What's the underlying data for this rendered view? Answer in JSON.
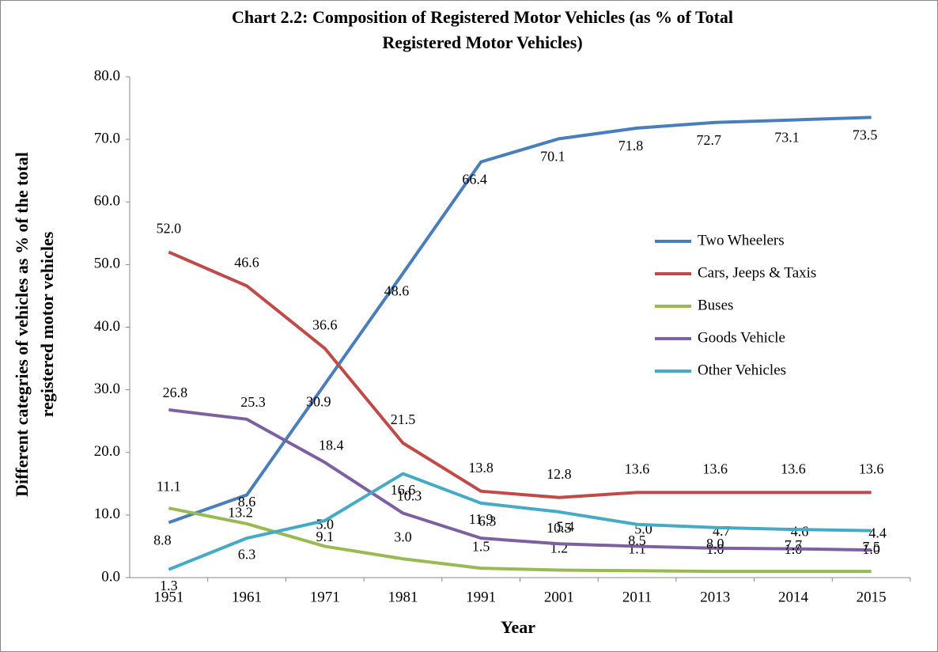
{
  "chart_data": {
    "type": "line",
    "title": [
      "Chart 2.2: Composition of Registered Motor Vehicles  (as % of Total",
      "Registered Motor Vehicles)"
    ],
    "x_label": "Year",
    "y_label": [
      "Different categries of vehicles as % of the total",
      "registered motor vehicles"
    ],
    "categories": [
      "1951",
      "1961",
      "1971",
      "1981",
      "1991",
      "2001",
      "2011",
      "2013",
      "2014",
      "2015"
    ],
    "ylim": [
      0,
      80
    ],
    "yticks": [
      {
        "value": 0,
        "label": "0.0"
      },
      {
        "value": 10,
        "label": "10.0"
      },
      {
        "value": 20,
        "label": "20.0"
      },
      {
        "value": 30,
        "label": "30.0"
      },
      {
        "value": 40,
        "label": "40.0"
      },
      {
        "value": 50,
        "label": "50.0"
      },
      {
        "value": 60,
        "label": "60.0"
      },
      {
        "value": 70,
        "label": "70.0"
      },
      {
        "value": 80,
        "label": "80.0"
      }
    ],
    "legend": "right",
    "series": [
      {
        "name": "Two Wheelers",
        "color": "#4a7ebb",
        "values": [
          8.8,
          13.2,
          30.9,
          48.6,
          66.4,
          70.1,
          71.8,
          72.7,
          73.1,
          73.5
        ],
        "value_labels": [
          "8.8",
          "13.2",
          "30.9",
          "48.6",
          "66.4",
          "70.1",
          "71.8",
          "72.7",
          "73.1",
          "73.5"
        ]
      },
      {
        "name": "Cars, Jeeps & Taxis",
        "color": "#be4b48",
        "values": [
          52.0,
          46.6,
          36.6,
          21.5,
          13.8,
          12.8,
          13.6,
          13.6,
          13.6,
          13.6
        ],
        "value_labels": [
          "52.0",
          "46.6",
          "36.6",
          "21.5",
          "13.8",
          "12.8",
          "13.6",
          "13.6",
          "13.6",
          "13.6"
        ]
      },
      {
        "name": "Buses",
        "color": "#98b954",
        "values": [
          11.1,
          8.6,
          5.0,
          3.0,
          1.5,
          1.2,
          1.1,
          1.0,
          1.0,
          1.0
        ],
        "value_labels": [
          "11.1",
          "8.6",
          "5.0",
          "3.0",
          "1.5",
          "1.2",
          "1.1",
          "1.0",
          "1.0",
          "1.0"
        ]
      },
      {
        "name": "Goods Vehicle",
        "color": "#7d60a0",
        "values": [
          26.8,
          25.3,
          18.4,
          10.3,
          6.3,
          5.4,
          5.0,
          4.7,
          4.6,
          4.4
        ],
        "value_labels": [
          "26.8",
          "25.3",
          "18.4",
          "10.3",
          "6.3",
          "5.4",
          "5.0",
          "4.7",
          "4.6",
          "4.4"
        ]
      },
      {
        "name": "Other Vehicles",
        "color": "#46aac5",
        "values": [
          1.3,
          6.3,
          9.1,
          16.6,
          11.9,
          10.5,
          8.5,
          8.0,
          7.7,
          7.5
        ],
        "value_labels": [
          "1.3",
          "6.3",
          "9.1",
          "16.6",
          "11.9",
          "10.5",
          "8.5",
          "8.0",
          "7.7",
          "7.5"
        ]
      }
    ]
  }
}
